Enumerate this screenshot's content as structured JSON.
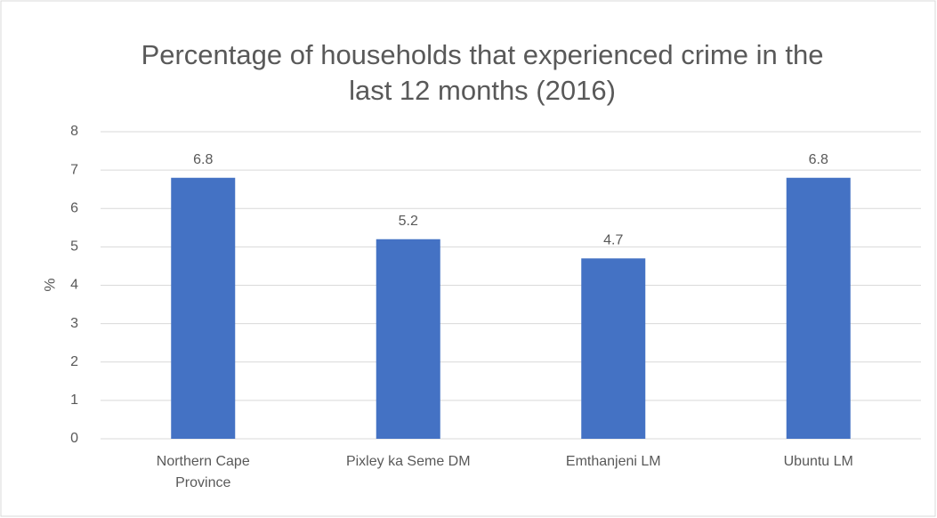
{
  "chart_data": {
    "type": "bar",
    "title": "Percentage of households that experienced crime in the last 12 months (2016)",
    "y_label": "%",
    "categories": [
      "Northern Cape Province",
      "Pixley ka Seme DM",
      "Emthanjeni LM",
      "Ubuntu LM"
    ],
    "values": [
      6.8,
      5.2,
      4.7,
      6.8
    ],
    "color": "#4472c4",
    "ylim": [
      0,
      8
    ],
    "yticks": [
      0,
      1,
      2,
      3,
      4,
      5,
      6,
      7,
      8
    ],
    "grid": true
  }
}
